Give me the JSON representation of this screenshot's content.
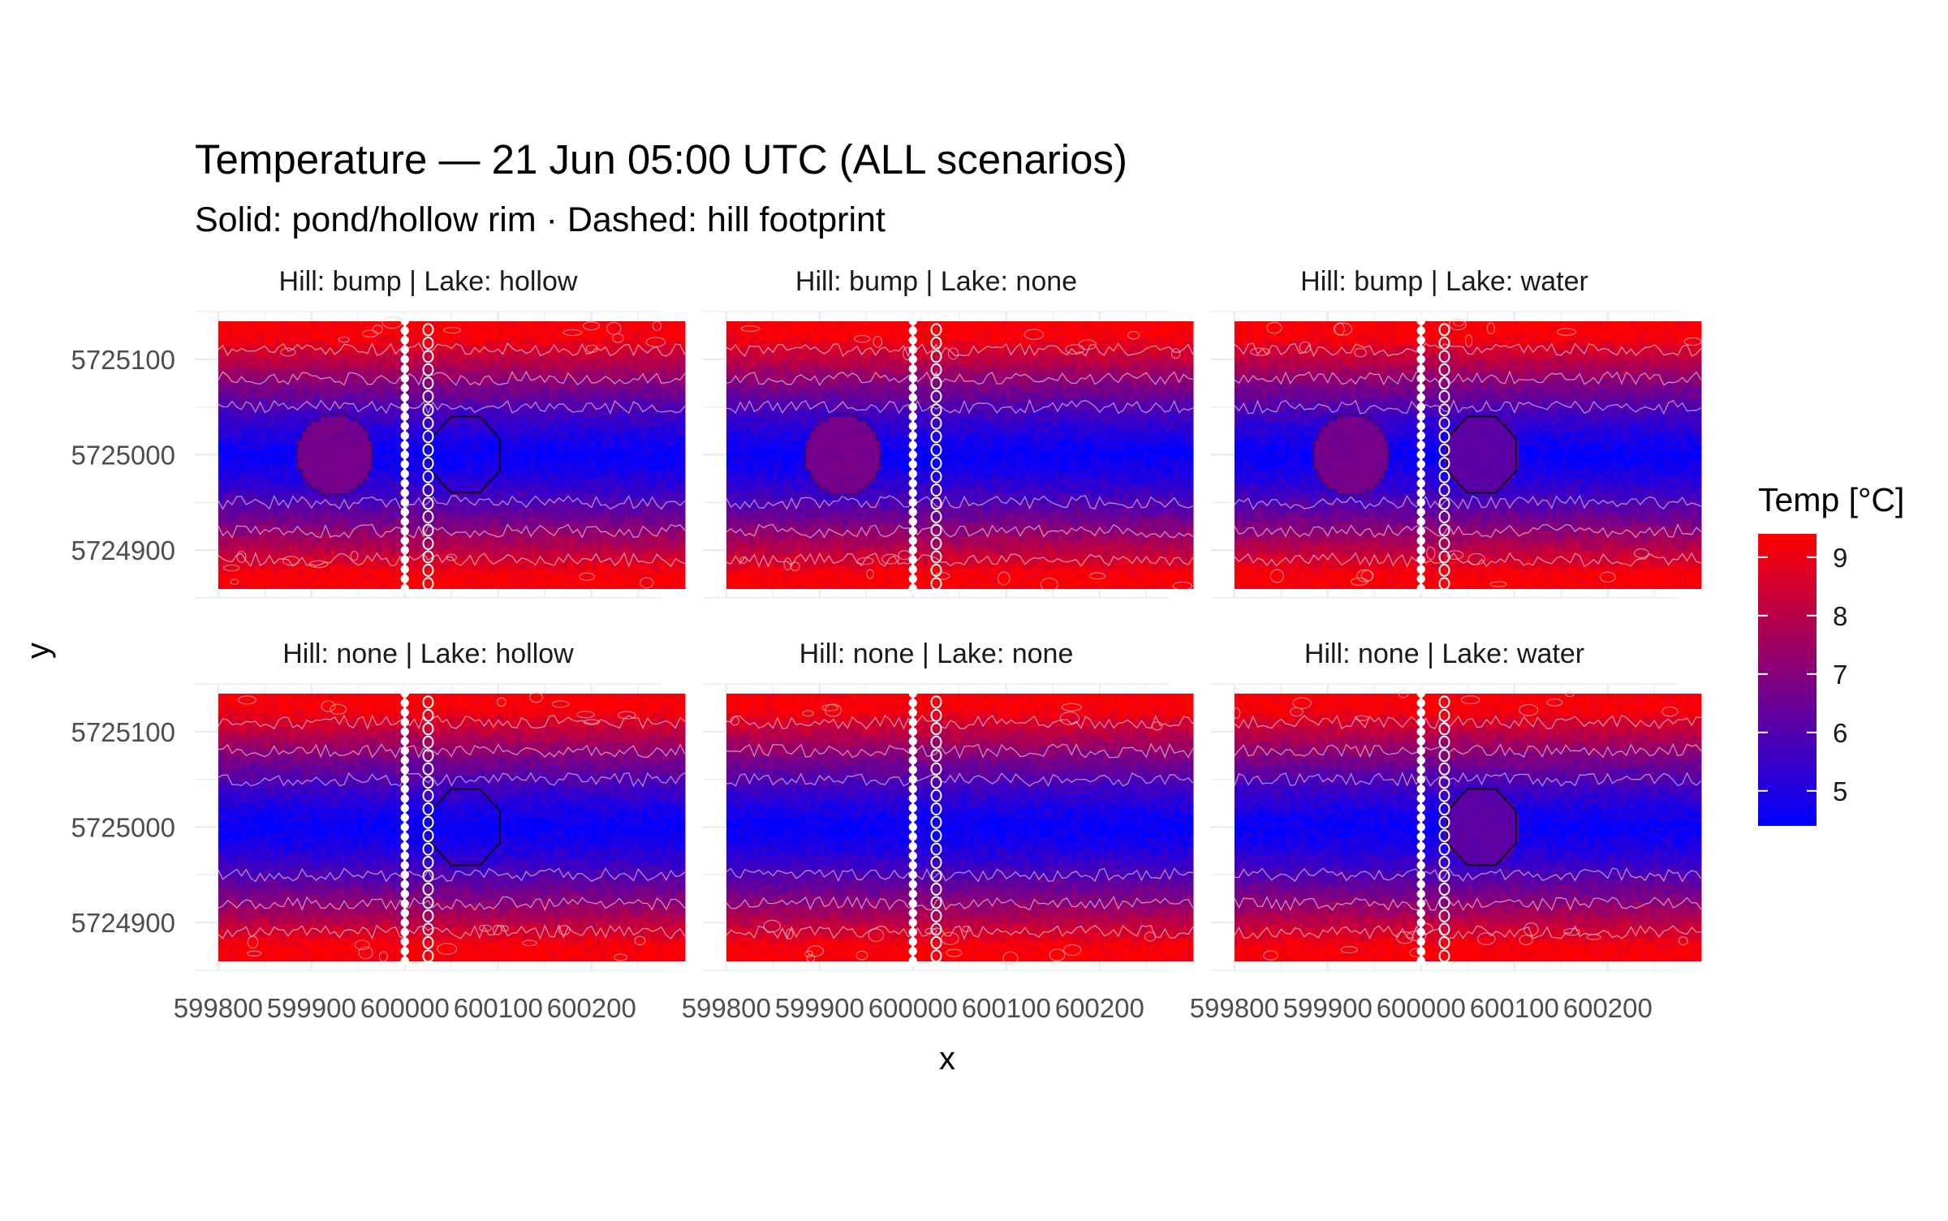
{
  "chart_data": {
    "type": "heatmap",
    "title": "Temperature — 21 Jun 05:00 UTC (ALL scenarios)",
    "subtitle": "Solid: pond/hollow rim · Dashed: hill footprint",
    "xlabel": "x",
    "ylabel": "y",
    "x_ticks": [
      599800,
      599900,
      600000,
      600100,
      600200
    ],
    "y_ticks": [
      5724900,
      5725000,
      5725100
    ],
    "xlim": [
      599775,
      600275
    ],
    "ylim": [
      5724850,
      5725150
    ],
    "grid": true,
    "legend": {
      "title": "Temp [°C]",
      "position": "right",
      "ticks": [
        5,
        6,
        7,
        8,
        9
      ],
      "range": [
        4.4,
        9.4
      ],
      "low_color": "#0000ff",
      "high_color": "#ff0000"
    },
    "field": {
      "description_units": "°C",
      "center_y": 5725000,
      "min_temp": 4.5,
      "max_temp": 9.3
    },
    "transect": {
      "x": 600000,
      "y_range": [
        5724850,
        5725150
      ]
    },
    "features": {
      "hill": {
        "center": [
          599925,
          5725000
        ],
        "radius": 40
      },
      "lake": {
        "center": [
          600065,
          5725000
        ],
        "radius": 40
      }
    },
    "panels": [
      {
        "title": "Hill: bump | Lake: hollow",
        "hill": "bump",
        "lake": "hollow"
      },
      {
        "title": "Hill: bump | Lake: none",
        "hill": "bump",
        "lake": "none"
      },
      {
        "title": "Hill: bump | Lake: water",
        "hill": "bump",
        "lake": "water"
      },
      {
        "title": "Hill: none | Lake: hollow",
        "hill": "none",
        "lake": "hollow"
      },
      {
        "title": "Hill: none | Lake: none",
        "hill": "none",
        "lake": "none"
      },
      {
        "title": "Hill: none | Lake: water",
        "hill": "none",
        "lake": "water"
      }
    ]
  }
}
